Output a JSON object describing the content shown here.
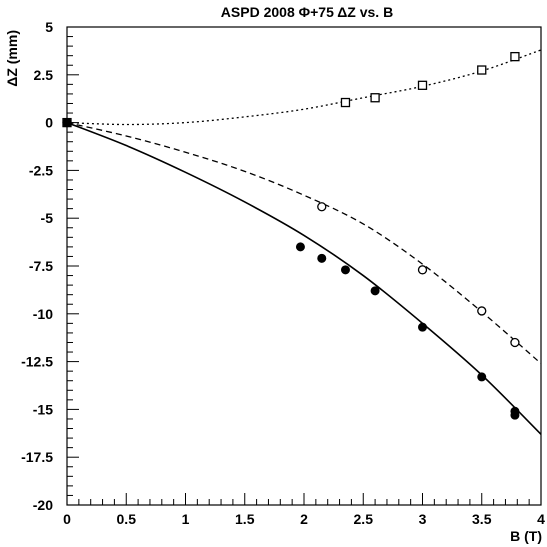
{
  "chart_data": {
    "type": "scatter",
    "title": "ASPD 2008 Φ+75 ΔZ vs. B",
    "xlabel": "B (T)",
    "ylabel": "ΔZ (mm)",
    "xlim": [
      0,
      4
    ],
    "ylim": [
      -20,
      5
    ],
    "x_ticks": [
      "0",
      "0.5",
      "1",
      "1.5",
      "2",
      "2.5",
      "3",
      "3.5",
      "4"
    ],
    "y_ticks": [
      "5",
      "2.5",
      "0",
      "-2.5",
      "-5",
      "-7.5",
      "-10",
      "-12.5",
      "-15",
      "-17.5",
      "-20"
    ],
    "grid": false,
    "series": [
      {
        "marker": "open-square",
        "line": "dotted",
        "points": [
          [
            0,
            0
          ],
          [
            2.35,
            1.05
          ],
          [
            2.6,
            1.3
          ],
          [
            3.0,
            1.95
          ],
          [
            3.5,
            2.75
          ],
          [
            3.78,
            3.45
          ]
        ],
        "fit": [
          [
            0,
            0
          ],
          [
            0.5,
            -0.1
          ],
          [
            1.0,
            0.0
          ],
          [
            1.5,
            0.3
          ],
          [
            2.0,
            0.7
          ],
          [
            2.5,
            1.3
          ],
          [
            3.0,
            1.9
          ],
          [
            3.5,
            2.7
          ],
          [
            4.0,
            3.8
          ]
        ]
      },
      {
        "marker": "open-circle",
        "line": "dashed",
        "points": [
          [
            0,
            0
          ],
          [
            2.15,
            -4.4
          ],
          [
            3.0,
            -7.7
          ],
          [
            3.5,
            -9.85
          ],
          [
            3.78,
            -11.5
          ]
        ],
        "fit": [
          [
            0,
            0
          ],
          [
            0.5,
            -0.7
          ],
          [
            1.0,
            -1.55
          ],
          [
            1.5,
            -2.55
          ],
          [
            2.0,
            -3.8
          ],
          [
            2.5,
            -5.3
          ],
          [
            3.0,
            -7.4
          ],
          [
            3.5,
            -9.9
          ],
          [
            4.0,
            -12.6
          ]
        ]
      },
      {
        "marker": "filled-circle",
        "line": "solid",
        "points": [
          [
            0,
            0
          ],
          [
            1.97,
            -6.5
          ],
          [
            2.15,
            -7.1
          ],
          [
            2.35,
            -7.7
          ],
          [
            2.6,
            -8.8
          ],
          [
            3.0,
            -10.7
          ],
          [
            3.5,
            -13.3
          ],
          [
            3.78,
            -15.1
          ],
          [
            3.78,
            -15.3
          ]
        ],
        "fit": [
          [
            0,
            0
          ],
          [
            0.5,
            -1.2
          ],
          [
            1.0,
            -2.6
          ],
          [
            1.5,
            -4.15
          ],
          [
            2.0,
            -5.9
          ],
          [
            2.5,
            -8.0
          ],
          [
            3.0,
            -10.5
          ],
          [
            3.5,
            -13.2
          ],
          [
            4.0,
            -16.3
          ]
        ]
      }
    ]
  }
}
